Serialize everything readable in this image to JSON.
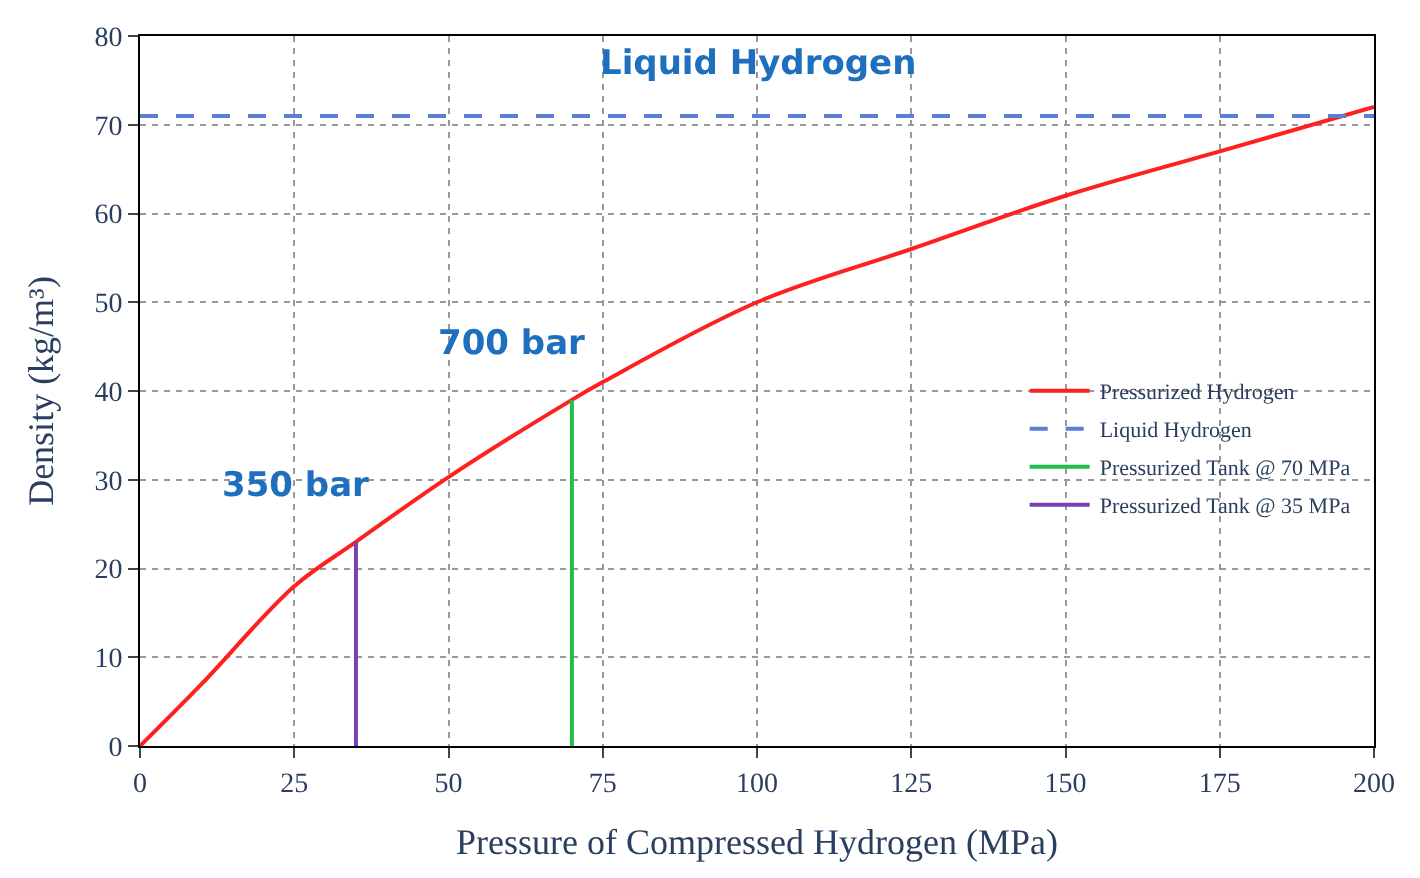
{
  "chart_data": {
    "type": "line",
    "xlabel": "Pressure of Compressed Hydrogen (MPa)",
    "ylabel": "Density (kg/m³)",
    "series": [
      {
        "name": "Pressurized Hydrogen",
        "color": "#ff2020",
        "x": [
          0,
          10,
          25,
          35,
          50,
          70,
          75,
          100,
          125,
          150,
          175,
          200
        ],
        "values": [
          0,
          7,
          18,
          23,
          30.3,
          39,
          41,
          50,
          56,
          62,
          67,
          72
        ]
      },
      {
        "name": "Liquid Hydrogen",
        "color": "#5b7fd6",
        "line_style": "dashed",
        "x": [
          0,
          200
        ],
        "values": [
          71,
          71
        ]
      },
      {
        "name": "Pressurized Tank @ 70 MPa",
        "color": "#1fbf4a",
        "x": [
          70,
          70
        ],
        "values": [
          0,
          39
        ]
      },
      {
        "name": "Pressurized Tank @ 35 MPa",
        "color": "#7a3fb0",
        "x": [
          35,
          35
        ],
        "values": [
          0,
          23
        ]
      }
    ],
    "annotations": [
      {
        "text": "Liquid Hydrogen",
        "x": 100,
        "y": 71
      },
      {
        "text": "700 bar",
        "x": 70,
        "y": 39
      },
      {
        "text": "350 bar",
        "x": 35,
        "y": 23
      }
    ],
    "xlim": [
      0,
      200
    ],
    "xticks": [
      0,
      25,
      50,
      75,
      100,
      125,
      150,
      175,
      200
    ],
    "ylim": [
      0,
      80
    ],
    "yticks": [
      0,
      10,
      20,
      30,
      40,
      50,
      60,
      70,
      80
    ],
    "grid": true,
    "legend": "right",
    "marker": "none"
  }
}
